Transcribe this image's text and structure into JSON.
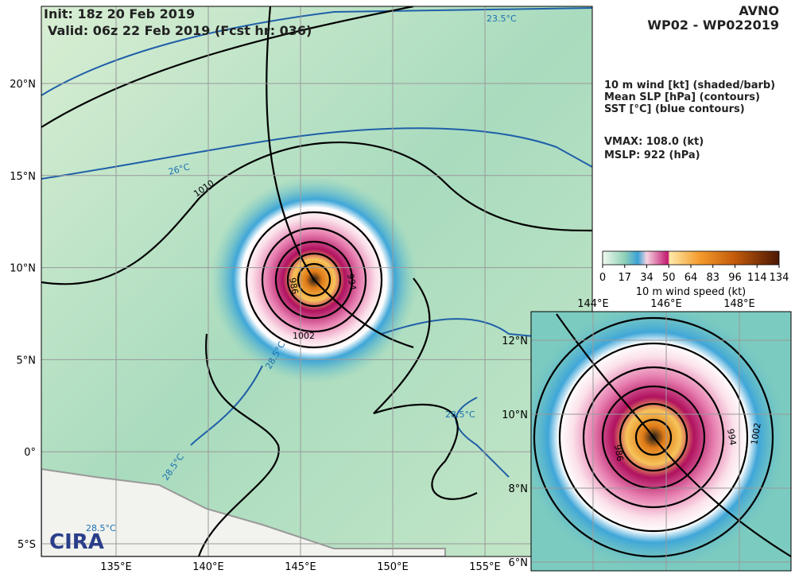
{
  "header": {
    "init": "Init:   18z 20 Feb 2019",
    "valid": "Valid: 06z 22 Feb 2019 (Fcst hr: 036)",
    "model": "AVNO",
    "storm": "WP02 - WP022019"
  },
  "info": {
    "lines": [
      "10 m wind [kt] (shaded/barb)",
      "Mean SLP [hPa] (contours)",
      "SST [°C] (blue contours)"
    ],
    "vmax": "VMAX: 108.0 (kt)",
    "mslp": "MSLP:  922 (hPa)"
  },
  "map": {
    "lat_labels": [
      "20°N",
      "15°N",
      "10°N",
      "5°N",
      "0°",
      "5°S"
    ],
    "lon_labels": [
      "135°E",
      "140°E",
      "145°E",
      "150°E",
      "155°E"
    ],
    "slp_labels": [
      "1010",
      "1002",
      "994",
      "986"
    ],
    "sst_labels": [
      "23.5°C",
      "26°C",
      "28.5°C",
      "28.5°C",
      "28.5°C",
      "28.5°C"
    ]
  },
  "colorbar": {
    "ticks": [
      "0",
      "17",
      "34",
      "50",
      "64",
      "83",
      "96",
      "114",
      "134"
    ],
    "label": "10 m wind speed (kt)"
  },
  "inset": {
    "lon_labels": [
      "144°E",
      "146°E",
      "148°E"
    ],
    "lat_labels": [
      "12°N",
      "10°N",
      "8°N",
      "6°N"
    ],
    "slp_labels": [
      "994",
      "986",
      "1002"
    ]
  }
}
